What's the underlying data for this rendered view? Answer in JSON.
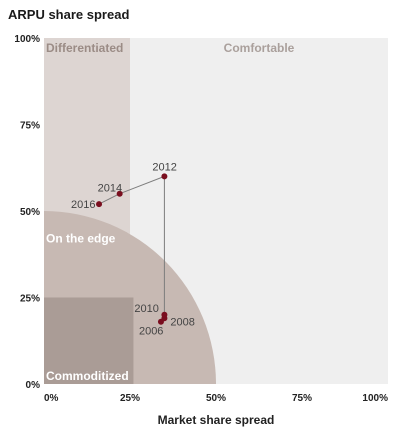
{
  "chart_data": {
    "type": "line",
    "title": "ARPU share spread",
    "xlabel": "Market share spread",
    "ylabel": "",
    "xlim": [
      0,
      100
    ],
    "ylim": [
      0,
      100
    ],
    "x_ticks": [
      "0%",
      "25%",
      "50%",
      "75%",
      "100%"
    ],
    "y_ticks": [
      "0%",
      "25%",
      "50%",
      "75%",
      "100%"
    ],
    "regions": [
      {
        "name": "Comfortable",
        "color": "#efefef"
      },
      {
        "name": "Differentiated",
        "color": "#ddd5d2"
      },
      {
        "name": "On the edge",
        "color": "#c7b9b3"
      },
      {
        "name": "Commoditized",
        "color": "#aa9c96"
      }
    ],
    "series": [
      {
        "color": "#7a0e1f",
        "points": [
          {
            "label": "2006",
            "x": 34,
            "y": 18
          },
          {
            "label": "2008",
            "x": 35,
            "y": 19
          },
          {
            "label": "2010",
            "x": 35,
            "y": 20
          },
          {
            "label": "2012",
            "x": 35,
            "y": 60
          },
          {
            "label": "2014",
            "x": 22,
            "y": 55
          },
          {
            "label": "2016",
            "x": 16,
            "y": 52
          }
        ]
      }
    ],
    "grid": false
  }
}
